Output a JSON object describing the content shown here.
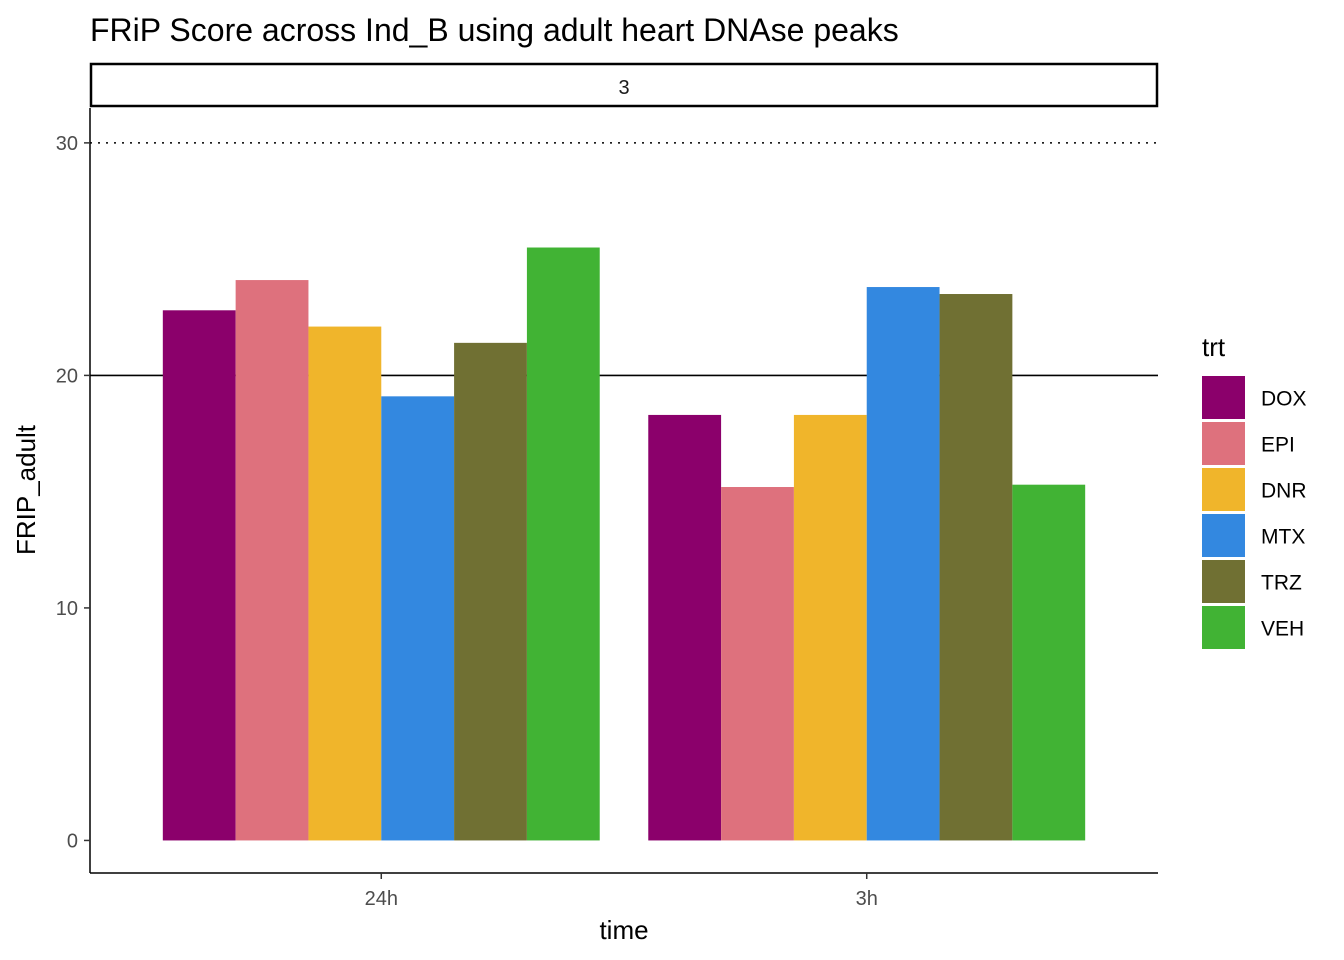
{
  "chart_data": {
    "type": "bar",
    "title": "FRiP Score across Ind_B using adult heart DNAse peaks",
    "facet_label": "3",
    "xlabel": "time",
    "ylabel": "FRIP_adult",
    "categories": [
      "24h",
      "3h"
    ],
    "ylim": [
      -1.4,
      31.5
    ],
    "yticks": [
      0,
      10,
      20,
      30
    ],
    "ytick_labels": [
      "0",
      "10",
      "20",
      "30"
    ],
    "reference_lines": [
      {
        "y": 20,
        "style": "solid"
      },
      {
        "y": 30,
        "style": "dotted"
      }
    ],
    "grid": false,
    "legend": {
      "title": "trt",
      "position": "right"
    },
    "series": [
      {
        "name": "DOX",
        "color": "#8B006B",
        "values": [
          22.8,
          18.3
        ]
      },
      {
        "name": "EPI",
        "color": "#DE717D",
        "values": [
          24.1,
          15.2
        ]
      },
      {
        "name": "DNR",
        "color": "#F0B52B",
        "values": [
          22.1,
          18.3
        ]
      },
      {
        "name": "MTX",
        "color": "#3388E0",
        "values": [
          19.1,
          23.8
        ]
      },
      {
        "name": "TRZ",
        "color": "#707033",
        "values": [
          21.4,
          23.5
        ]
      },
      {
        "name": "VEH",
        "color": "#41B334",
        "values": [
          25.5,
          15.3
        ]
      }
    ]
  }
}
